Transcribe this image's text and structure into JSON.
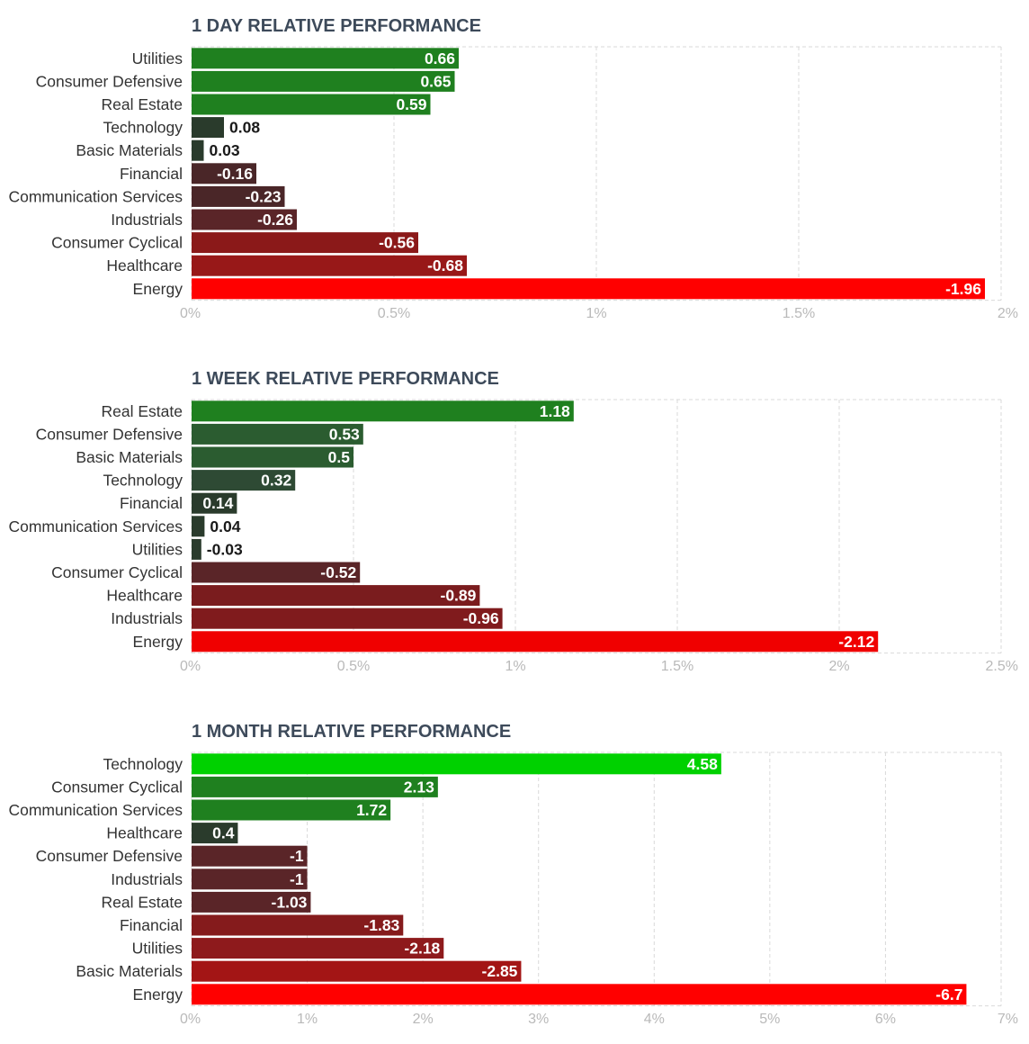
{
  "chart_data": [
    {
      "type": "bar",
      "title": "1 DAY RELATIVE PERFORMANCE",
      "categories": [
        "Utilities",
        "Consumer Defensive",
        "Real Estate",
        "Technology",
        "Basic Materials",
        "Financial",
        "Communication Services",
        "Industrials",
        "Consumer Cyclical",
        "Healthcare",
        "Energy"
      ],
      "values": [
        0.66,
        0.65,
        0.59,
        0.08,
        0.03,
        -0.16,
        -0.23,
        -0.26,
        -0.56,
        -0.68,
        -1.96
      ],
      "value_labels": [
        "0.66",
        "0.65",
        "0.59",
        "0.08",
        "0.03",
        "-0.16",
        "-0.23",
        "-0.26",
        "-0.56",
        "-0.68",
        "-1.96"
      ],
      "colors": [
        "#1f801f",
        "#1f801f",
        "#1f801f",
        "#2a3b2c",
        "#2a3b2c",
        "#4a2628",
        "#4a2628",
        "#5a2528",
        "#8b1919",
        "#981818",
        "#ff0000"
      ],
      "xlim": [
        0,
        2
      ],
      "xticks": [
        0,
        0.5,
        1,
        1.5,
        2
      ],
      "tick_labels": [
        "0%",
        "0.5%",
        "1%",
        "1.5%",
        "2%"
      ]
    },
    {
      "type": "bar",
      "title": "1 WEEK RELATIVE PERFORMANCE",
      "categories": [
        "Real Estate",
        "Consumer Defensive",
        "Basic Materials",
        "Technology",
        "Financial",
        "Communication Services",
        "Utilities",
        "Consumer Cyclical",
        "Healthcare",
        "Industrials",
        "Energy"
      ],
      "values": [
        1.18,
        0.53,
        0.5,
        0.32,
        0.14,
        0.04,
        -0.03,
        -0.52,
        -0.89,
        -0.96,
        -2.12
      ],
      "value_labels": [
        "1.18",
        "0.53",
        "0.5",
        "0.32",
        "0.14",
        "0.04",
        "-0.03",
        "-0.52",
        "-0.89",
        "-0.96",
        "-2.12"
      ],
      "colors": [
        "#1f801f",
        "#2b5c30",
        "#2b5c30",
        "#2e4a34",
        "#2a3b2c",
        "#2a3b2c",
        "#2a3b2c",
        "#5a2528",
        "#7a1c1e",
        "#801b1d",
        "#f00000"
      ],
      "xlim": [
        0,
        2.5
      ],
      "xticks": [
        0,
        0.5,
        1,
        1.5,
        2,
        2.5
      ],
      "tick_labels": [
        "0%",
        "0.5%",
        "1%",
        "1.5%",
        "2%",
        "2.5%"
      ]
    },
    {
      "type": "bar",
      "title": "1 MONTH RELATIVE PERFORMANCE",
      "categories": [
        "Technology",
        "Consumer Cyclical",
        "Communication Services",
        "Healthcare",
        "Consumer Defensive",
        "Industrials",
        "Real Estate",
        "Financial",
        "Utilities",
        "Basic Materials",
        "Energy"
      ],
      "values": [
        4.58,
        2.13,
        1.72,
        0.4,
        -1,
        -1,
        -1.03,
        -1.83,
        -2.18,
        -2.85,
        -6.7
      ],
      "value_labels": [
        "4.58",
        "2.13",
        "1.72",
        "0.4",
        "-1",
        "-1",
        "-1.03",
        "-1.83",
        "-2.18",
        "-2.85",
        "-6.7"
      ],
      "colors": [
        "#00d100",
        "#1f801f",
        "#1f801f",
        "#2a3b2c",
        "#5a2528",
        "#5a2528",
        "#5a2528",
        "#851b1c",
        "#8e1a1c",
        "#a31515",
        "#ff0000"
      ],
      "xlim": [
        0,
        7
      ],
      "xticks": [
        0,
        1,
        2,
        3,
        4,
        5,
        6,
        7
      ],
      "tick_labels": [
        "0%",
        "1%",
        "2%",
        "3%",
        "4%",
        "5%",
        "6%",
        "7%"
      ]
    }
  ]
}
